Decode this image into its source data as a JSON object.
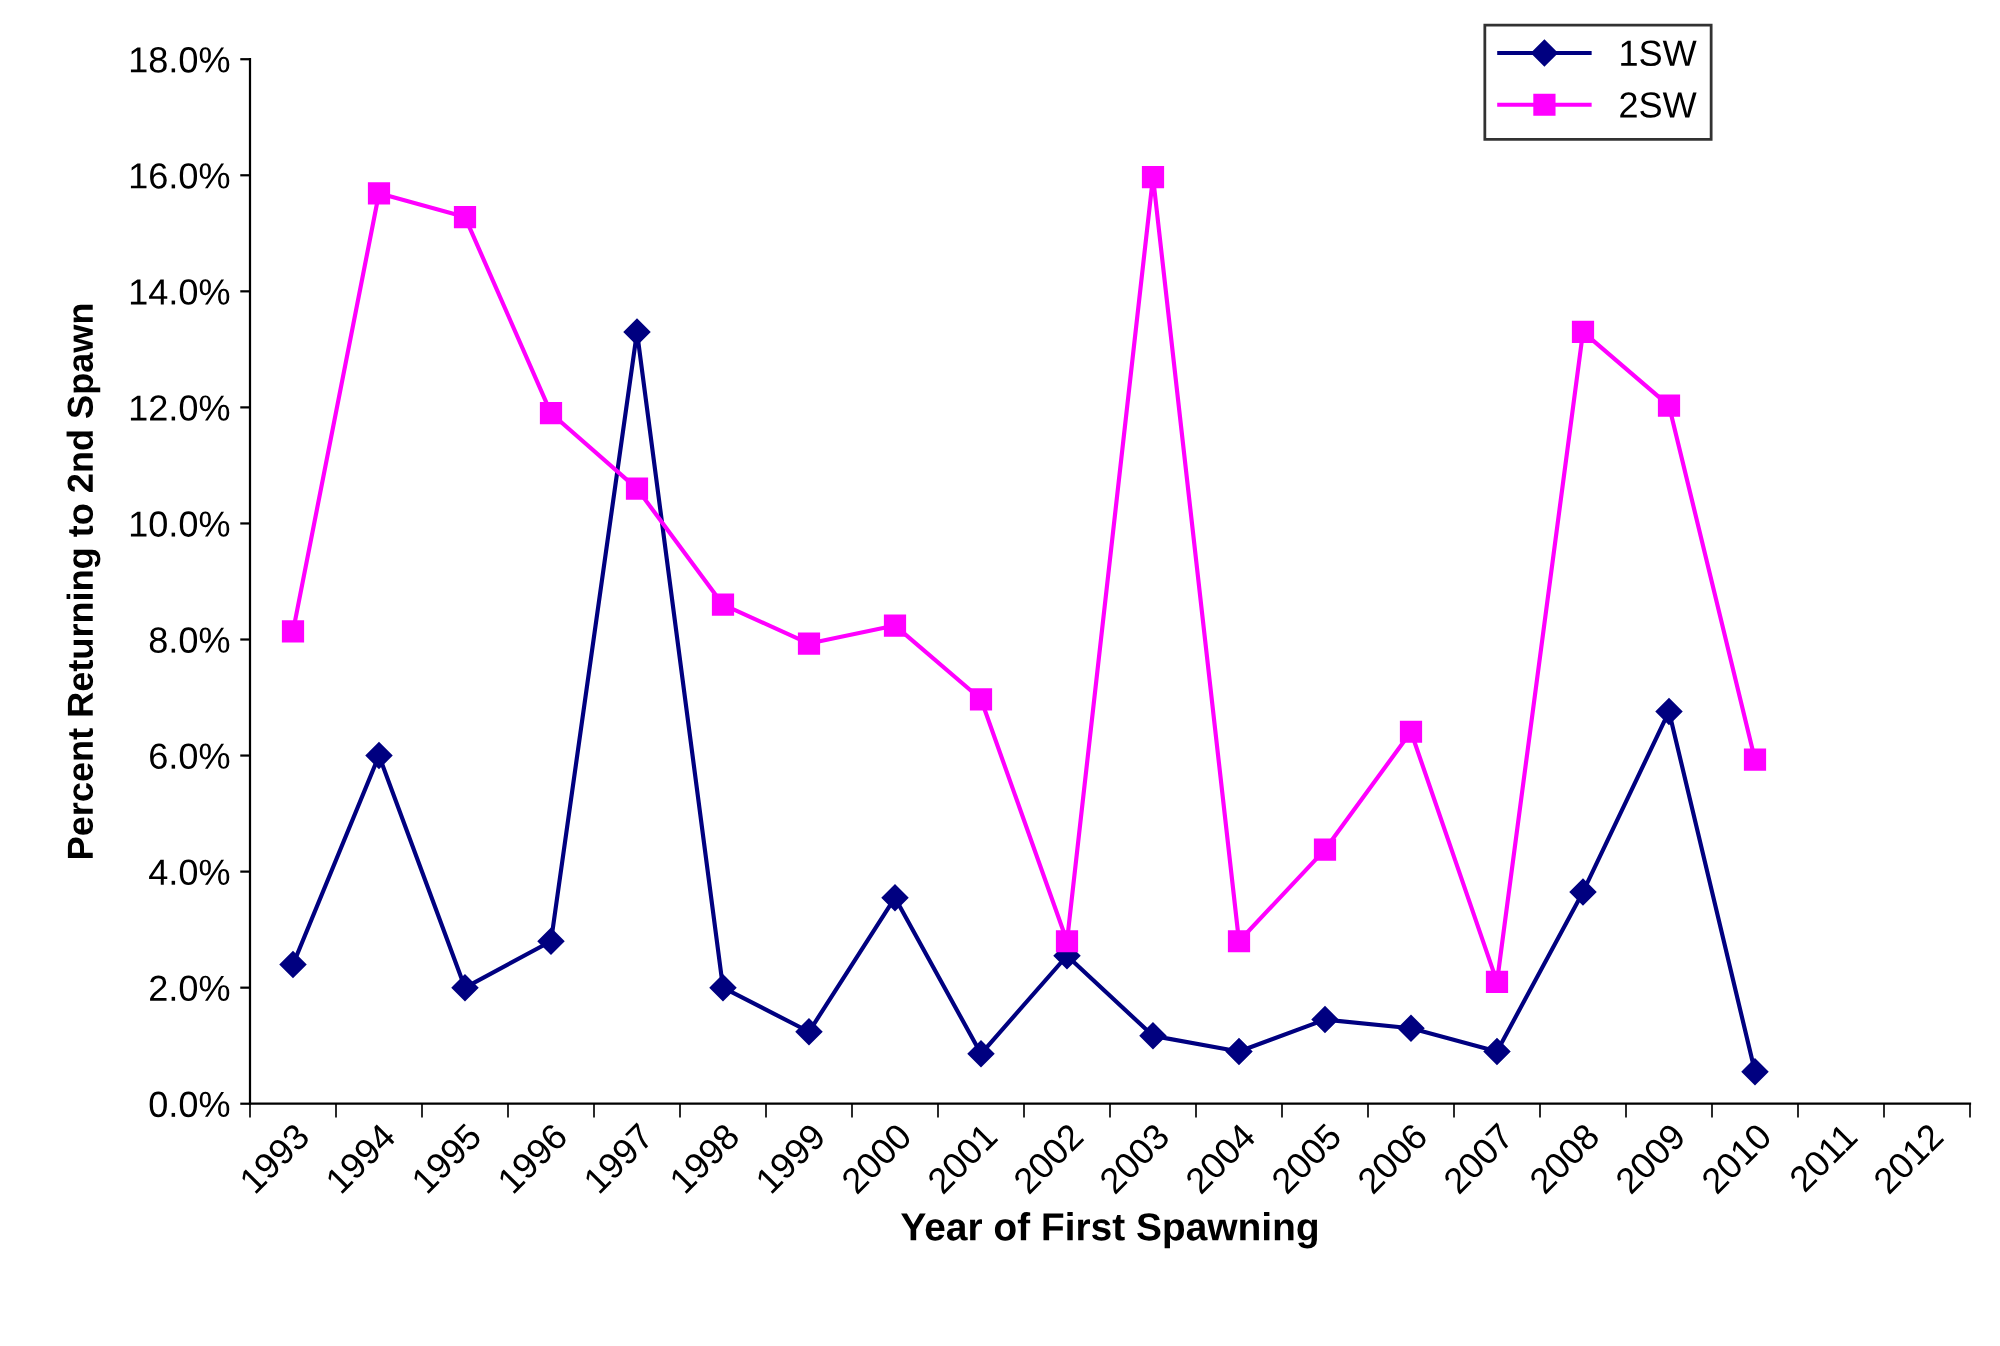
{
  "chart_data": {
    "type": "line",
    "xlabel": "Year of First Spawning",
    "ylabel": "Percent Returning to 2nd Spawn",
    "categories": [
      "1993",
      "1994",
      "1995",
      "1996",
      "1997",
      "1998",
      "1999",
      "2000",
      "2001",
      "2002",
      "2003",
      "2004",
      "2005",
      "2006",
      "2007",
      "2008",
      "2009",
      "2010",
      "2011",
      "2012"
    ],
    "series": [
      {
        "name": "1SW",
        "color": "#000080",
        "marker": "diamond",
        "values": [
          2.4,
          6.0,
          2.0,
          2.8,
          13.3,
          2.0,
          1.24,
          3.55,
          0.86,
          2.55,
          1.17,
          0.9,
          1.45,
          1.3,
          0.9,
          3.65,
          6.76,
          0.55,
          null,
          null
        ]
      },
      {
        "name": "2SW",
        "color": "#ff00ff",
        "marker": "square",
        "values": [
          8.14,
          15.69,
          15.28,
          11.9,
          10.6,
          8.6,
          7.93,
          8.24,
          6.97,
          2.8,
          15.97,
          2.8,
          4.38,
          6.41,
          2.1,
          13.3,
          12.03,
          5.93,
          null,
          null
        ]
      }
    ],
    "ylim": [
      0,
      18
    ],
    "yticks": [
      {
        "value": 0,
        "label": "0.0%"
      },
      {
        "value": 2,
        "label": "2.0%"
      },
      {
        "value": 4,
        "label": "4.0%"
      },
      {
        "value": 6,
        "label": "6.0%"
      },
      {
        "value": 8,
        "label": "8.0%"
      },
      {
        "value": 10,
        "label": "10.0%"
      },
      {
        "value": 12,
        "label": "12.0%"
      },
      {
        "value": 14,
        "label": "14.0%"
      },
      {
        "value": 16,
        "label": "16.0%"
      },
      {
        "value": 18,
        "label": "18.0%"
      }
    ],
    "grid": false,
    "legend": "top right",
    "line_style": "solid"
  }
}
